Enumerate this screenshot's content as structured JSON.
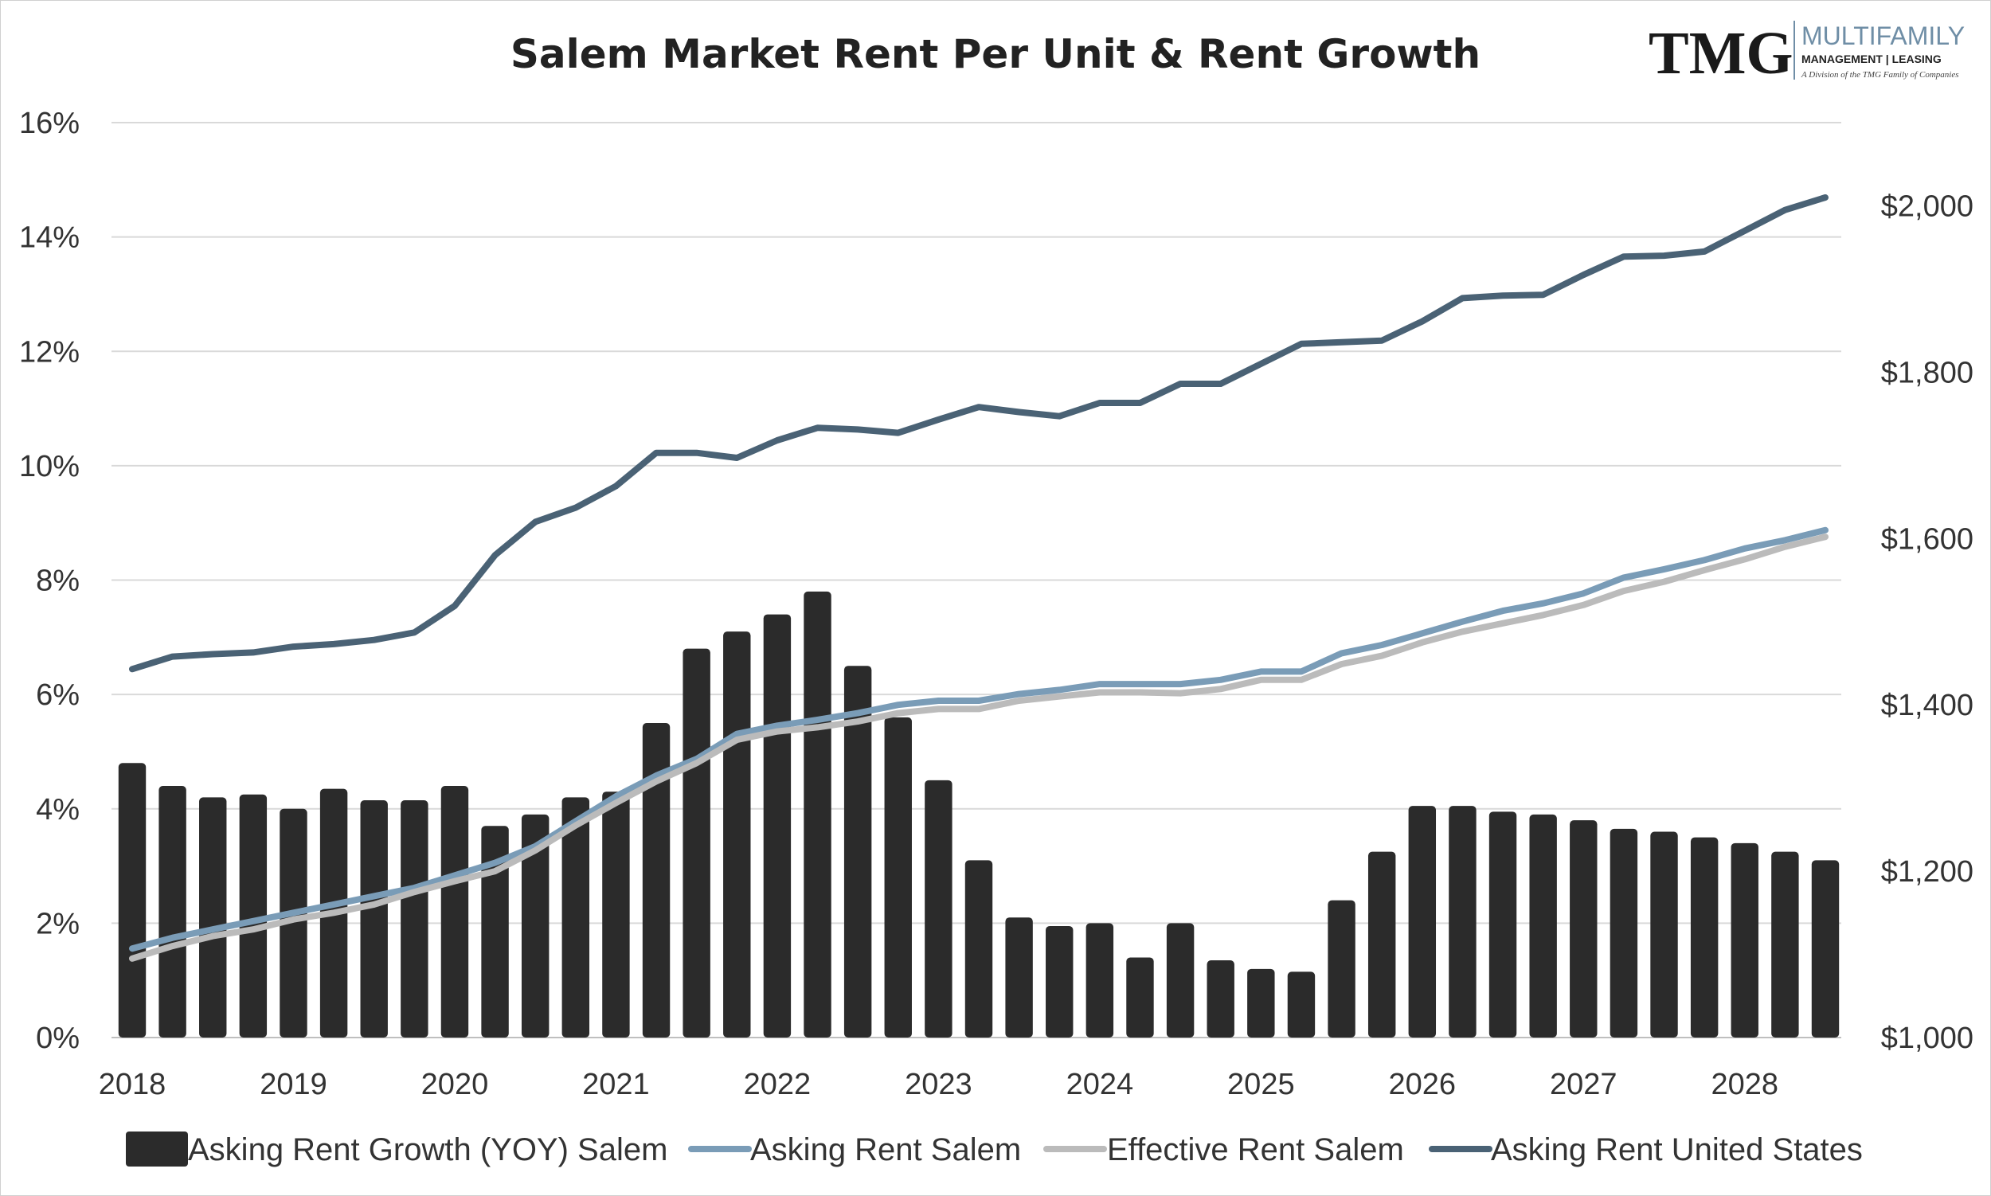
{
  "chart_data": {
    "type": "bar",
    "title": "Salem Market Rent Per Unit & Rent Growth",
    "x_labels": [
      "2018",
      "2019",
      "2020",
      "2021",
      "2022",
      "2023",
      "2024",
      "2025",
      "2026",
      "2027",
      "2028"
    ],
    "left_axis": {
      "ticks": [
        "0%",
        "2%",
        "4%",
        "6%",
        "8%",
        "10%",
        "12%",
        "14%",
        "16%"
      ],
      "range": [
        0,
        16
      ]
    },
    "right_axis": {
      "ticks": [
        "$1,000",
        "$1,200",
        "$1,400",
        "$1,600",
        "$1,800",
        "$2,000"
      ],
      "range": [
        1000,
        2100
      ]
    },
    "grid": true,
    "legend_position": "bottom",
    "series": [
      {
        "name": "Asking Rent Growth (YOY) Salem",
        "type": "bar",
        "axis": "left",
        "color": "#2b2b2b",
        "values": [
          4.8,
          4.4,
          4.2,
          4.25,
          4.0,
          4.35,
          4.15,
          4.15,
          4.4,
          3.7,
          3.9,
          4.2,
          4.3,
          5.5,
          6.8,
          7.1,
          7.4,
          7.8,
          6.5,
          5.6,
          4.5,
          3.1,
          2.1,
          1.95,
          2.0,
          1.4,
          2.0,
          1.35,
          1.2,
          1.15,
          2.4,
          3.25,
          4.05,
          4.05,
          3.95,
          3.9,
          3.8,
          3.65,
          3.6,
          3.5,
          3.4,
          3.25,
          3.1
        ]
      },
      {
        "name": "Asking Rent Salem",
        "type": "line",
        "axis": "right",
        "color": "#7a9cb7",
        "values": [
          1107,
          1120,
          1130,
          1140,
          1150,
          1160,
          1170,
          1180,
          1195,
          1210,
          1230,
          1260,
          1290,
          1315,
          1335,
          1365,
          1375,
          1382,
          1390,
          1400,
          1405,
          1405,
          1413,
          1418,
          1425,
          1425,
          1425,
          1430,
          1440,
          1440,
          1462,
          1472,
          1486,
          1500,
          1513,
          1522,
          1534,
          1553,
          1563,
          1574,
          1588,
          1598,
          1610
        ]
      },
      {
        "name": "Effective Rent Salem",
        "type": "line",
        "axis": "right",
        "color": "#bbbbbb",
        "values": [
          1095,
          1110,
          1122,
          1130,
          1142,
          1150,
          1160,
          1175,
          1188,
          1200,
          1225,
          1255,
          1282,
          1308,
          1330,
          1358,
          1368,
          1373,
          1380,
          1390,
          1395,
          1395,
          1405,
          1410,
          1415,
          1415,
          1414,
          1419,
          1430,
          1430,
          1449,
          1459,
          1475,
          1488,
          1498,
          1508,
          1520,
          1537,
          1548,
          1562,
          1575,
          1590,
          1602
        ]
      },
      {
        "name": "Asking Rent United States",
        "type": "line",
        "axis": "right",
        "color": "#4a6275",
        "values": [
          1443,
          1458,
          1461,
          1463,
          1470,
          1473,
          1478,
          1487,
          1519,
          1580,
          1620,
          1637,
          1663,
          1703,
          1703,
          1697,
          1718,
          1733,
          1731,
          1727,
          1743,
          1758,
          1752,
          1747,
          1763,
          1763,
          1786,
          1786,
          1810,
          1834,
          1836,
          1838,
          1861,
          1889,
          1892,
          1893,
          1917,
          1939,
          1940,
          1945,
          1970,
          1995,
          2010
        ]
      }
    ]
  }
}
